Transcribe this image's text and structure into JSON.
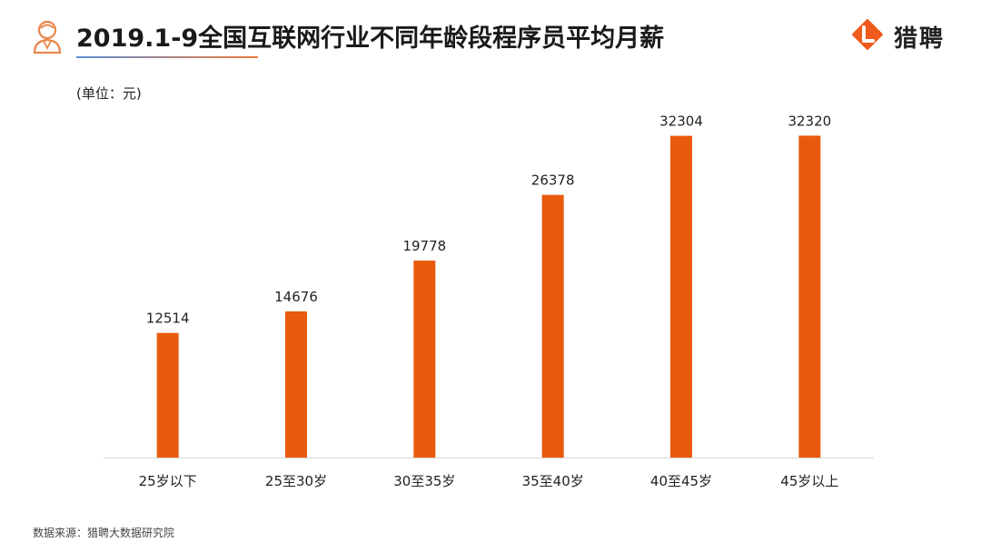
{
  "header": {
    "title": "2019.1-9全国互联网行业不同年龄段程序员平均月薪",
    "logo_text": "猎聘",
    "title_icon": "person-icon",
    "logo_icon": "liepin-logo-icon"
  },
  "colors": {
    "bar": "#E85A0C",
    "axis": "#d9d9d9",
    "logo": "#F05A1A"
  },
  "unit_label": "(单位：元)",
  "source": "数据来源：猎聘大数据研究院",
  "chart_data": {
    "type": "bar",
    "categories": [
      "25岁以下",
      "25至30岁",
      "30至35岁",
      "35至40岁",
      "40至45岁",
      "45岁以上"
    ],
    "values": [
      12514,
      14676,
      19778,
      26378,
      32304,
      32320
    ],
    "ylim": [
      0,
      34000
    ],
    "grid": false,
    "legend": "none",
    "data_labels": true
  }
}
